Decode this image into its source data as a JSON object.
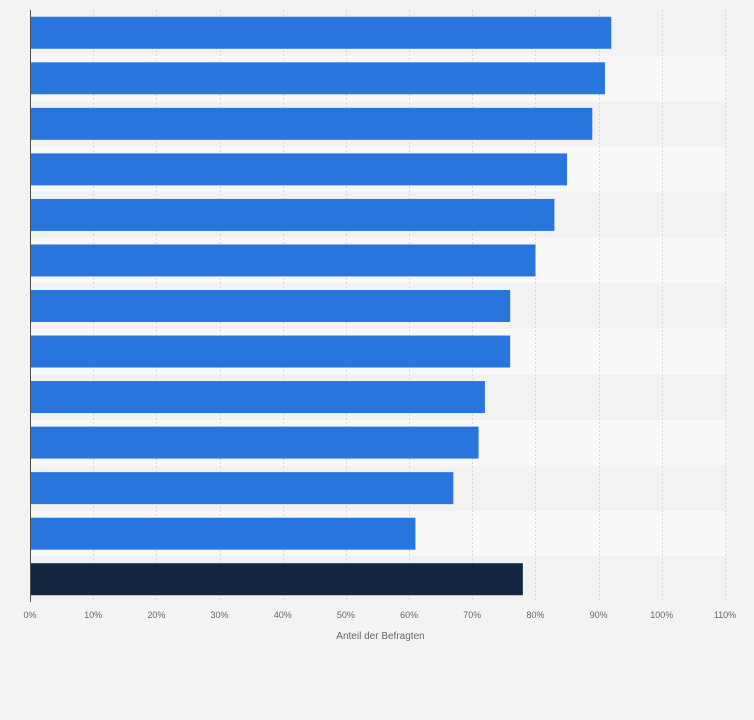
{
  "chart_data": {
    "type": "bar",
    "orientation": "horizontal",
    "categories": [
      "",
      "",
      "",
      "",
      "",
      "",
      "",
      "",
      "",
      "",
      "",
      "",
      ""
    ],
    "series": [
      {
        "values": [
          92,
          91,
          89,
          85,
          83,
          80,
          76,
          76,
          72,
          71,
          67,
          61,
          78
        ]
      }
    ],
    "highlight_index": 12,
    "xlabel": "Anteil der Befragten",
    "ylabel": "",
    "xlim": [
      0,
      110
    ],
    "x_ticks": [
      0,
      10,
      20,
      30,
      40,
      50,
      60,
      70,
      80,
      90,
      100,
      110
    ],
    "x_tick_labels": [
      "0%",
      "10%",
      "20%",
      "30%",
      "40%",
      "50%",
      "60%",
      "70%",
      "80%",
      "90%",
      "100%",
      "110%"
    ],
    "grid": true,
    "legend": "none",
    "colors": {
      "bar": "#2876dd",
      "highlight_bar": "#14253f",
      "background": "#f3f3f3",
      "band_light": "#f8f8f8",
      "band_dark": "#f2f2f2",
      "gridline": "#dadada",
      "axis": "#4d4d4d",
      "text": "#666666"
    }
  }
}
